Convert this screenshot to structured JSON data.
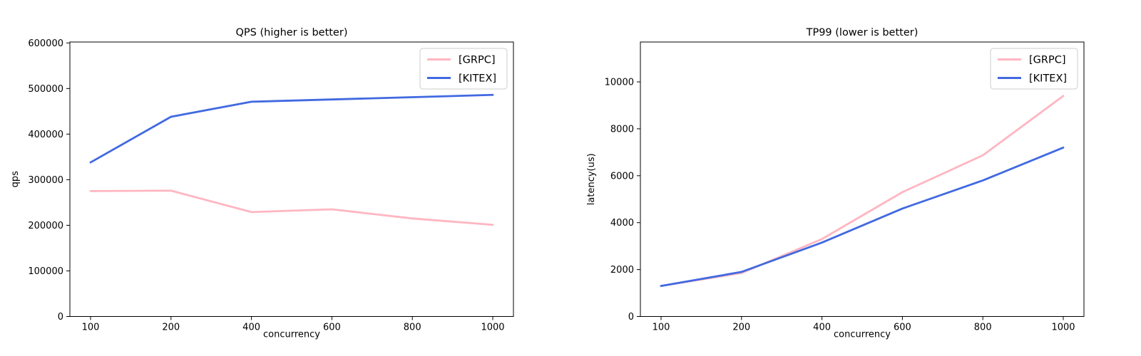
{
  "figure": {
    "background_color": "#ffffff",
    "description": "RPC framework benchmark: two side-by-side line charts comparing GRPC and KITEX"
  },
  "chart_data": [
    {
      "type": "line",
      "title": "QPS (higher is better)",
      "xlabel": "concurrency",
      "ylabel": "qps",
      "categories": [
        "100",
        "200",
        "400",
        "600",
        "800",
        "1000"
      ],
      "yticks": [
        0,
        100000,
        200000,
        300000,
        400000,
        500000,
        600000
      ],
      "ytick_labels": [
        "0",
        "100000",
        "200000",
        "300000",
        "400000",
        "500000",
        "600000"
      ],
      "ylim": [
        0,
        602000
      ],
      "grid": false,
      "legend_position": "upper right",
      "series": [
        {
          "name": "[GRPC]",
          "color": "#ffb6c1",
          "values": [
            275000,
            276000,
            229000,
            235000,
            215000,
            201000
          ]
        },
        {
          "name": "[KITEX]",
          "color": "#4169e1",
          "values": [
            338000,
            438000,
            471000,
            476000,
            481000,
            486000
          ]
        }
      ]
    },
    {
      "type": "line",
      "title": "TP99 (lower is better)",
      "xlabel": "concurrency",
      "ylabel": "latency(us)",
      "categories": [
        "100",
        "200",
        "400",
        "600",
        "800",
        "1000"
      ],
      "yticks": [
        0,
        2000,
        4000,
        6000,
        8000,
        10000
      ],
      "ytick_labels": [
        "0",
        "2000",
        "4000",
        "6000",
        "8000",
        "10000"
      ],
      "ylim": [
        0,
        11700
      ],
      "grid": false,
      "legend_position": "upper right",
      "series": [
        {
          "name": "[GRPC]",
          "color": "#ffb6c1",
          "values": [
            1300,
            1850,
            3300,
            5300,
            6870,
            9400
          ]
        },
        {
          "name": "[KITEX]",
          "color": "#4169e1",
          "values": [
            1300,
            1900,
            3150,
            4600,
            5800,
            7200
          ]
        }
      ]
    }
  ]
}
